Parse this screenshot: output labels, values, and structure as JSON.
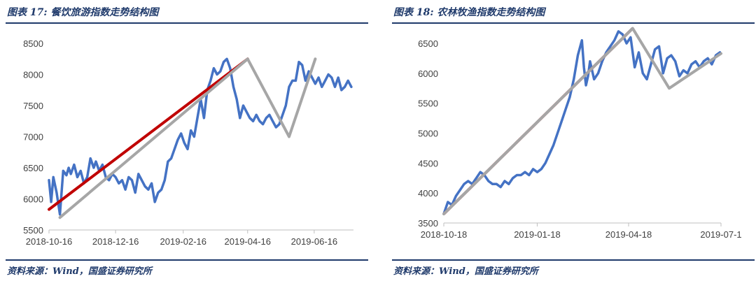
{
  "charts": [
    {
      "title": "图表 17:  餐饮旅游指数走势结构图",
      "source": "资料来源：Wind，国盛证券研究所",
      "chart_data": {
        "type": "line",
        "x_ticks": [
          "2018-10-16",
          "2018-12-16",
          "2019-02-16",
          "2019-04-16",
          "2019-06-16"
        ],
        "x_range": [
          "2018-10-16",
          "2019-07-22"
        ],
        "ylim": [
          5500,
          8500
        ],
        "y_ticks": [
          5500,
          6000,
          6500,
          7000,
          7500,
          8000,
          8500
        ],
        "grid": false,
        "legend": "none",
        "series": [
          {
            "color": "#4472c4",
            "x": [
              "2018-10-16",
              "2018-10-18",
              "2018-10-20",
              "2018-10-23",
              "2018-10-26",
              "2018-10-29",
              "2018-11-01",
              "2018-11-03",
              "2018-11-05",
              "2018-11-08",
              "2018-11-11",
              "2018-11-14",
              "2018-11-17",
              "2018-11-20",
              "2018-11-23",
              "2018-11-26",
              "2018-11-28",
              "2018-12-01",
              "2018-12-04",
              "2018-12-07",
              "2018-12-10",
              "2018-12-13",
              "2018-12-16",
              "2018-12-19",
              "2018-12-22",
              "2018-12-25",
              "2018-12-28",
              "2018-12-31",
              "2019-01-03",
              "2019-01-06",
              "2019-01-09",
              "2019-01-12",
              "2019-01-15",
              "2019-01-18",
              "2019-01-21",
              "2019-01-24",
              "2019-01-27",
              "2019-01-30",
              "2019-02-02",
              "2019-02-05",
              "2019-02-08",
              "2019-02-11",
              "2019-02-14",
              "2019-02-17",
              "2019-02-20",
              "2019-02-23",
              "2019-02-26",
              "2019-03-01",
              "2019-03-04",
              "2019-03-07",
              "2019-03-10",
              "2019-03-13",
              "2019-03-16",
              "2019-03-19",
              "2019-03-22",
              "2019-03-25",
              "2019-03-28",
              "2019-03-31",
              "2019-04-03",
              "2019-04-06",
              "2019-04-09",
              "2019-04-12",
              "2019-04-15",
              "2019-04-18",
              "2019-04-21",
              "2019-04-24",
              "2019-04-27",
              "2019-04-30",
              "2019-05-03",
              "2019-05-06",
              "2019-05-09",
              "2019-05-12",
              "2019-05-15",
              "2019-05-18",
              "2019-05-21",
              "2019-05-24",
              "2019-05-27",
              "2019-05-30",
              "2019-06-02",
              "2019-06-05",
              "2019-06-08",
              "2019-06-11",
              "2019-06-14",
              "2019-06-17",
              "2019-06-20",
              "2019-06-23",
              "2019-06-26",
              "2019-06-29",
              "2019-07-02",
              "2019-07-05",
              "2019-07-08",
              "2019-07-11",
              "2019-07-14",
              "2019-07-17",
              "2019-07-20"
            ],
            "values": [
              6300,
              5950,
              6350,
              6100,
              5750,
              6450,
              6380,
              6500,
              6400,
              6550,
              6350,
              6450,
              6250,
              6350,
              6650,
              6500,
              6600,
              6450,
              6550,
              6350,
              6300,
              6400,
              6350,
              6250,
              6300,
              6150,
              6350,
              6300,
              6100,
              6400,
              6300,
              6200,
              6150,
              6250,
              5950,
              6100,
              6150,
              6300,
              6600,
              6650,
              6800,
              6950,
              7050,
              6900,
              6800,
              7100,
              7000,
              7300,
              7600,
              7300,
              7750,
              7900,
              8100,
              8000,
              8050,
              8200,
              8250,
              8100,
              7800,
              7600,
              7300,
              7500,
              7400,
              7300,
              7250,
              7350,
              7250,
              7200,
              7300,
              7350,
              7250,
              7150,
              7200,
              7350,
              7500,
              7800,
              7900,
              7900,
              8200,
              8150,
              7900,
              8050,
              7950,
              7850,
              7950,
              7800,
              7900,
              8000,
              7950,
              7800,
              7950,
              7750,
              7800,
              7900,
              7800
            ]
          },
          {
            "color": "#c00000",
            "x": [
              "2018-10-16",
              "2019-04-16"
            ],
            "values": [
              5830,
              8250
            ]
          },
          {
            "color": "#a6a6a6",
            "x": [
              "2018-10-26",
              "2019-04-16",
              "2019-05-24",
              "2019-06-17"
            ],
            "values": [
              5700,
              8250,
              7000,
              8250
            ]
          }
        ]
      }
    },
    {
      "title": "图表 18:  农林牧渔指数走势结构图",
      "source": "资料来源：Wind，国盛证券研究所",
      "chart_data": {
        "type": "line",
        "x_ticks": [
          "2018-10-18",
          "2019-01-18",
          "2019-04-18",
          "2019-07-1"
        ],
        "x_range": [
          "2018-10-18",
          "2019-07-18"
        ],
        "ylim": [
          3500,
          6500
        ],
        "y_ticks": [
          3500,
          4000,
          4500,
          5000,
          5500,
          6000,
          6500
        ],
        "grid": false,
        "legend": "none",
        "series": [
          {
            "color": "#4472c4",
            "x": [
              "2018-10-18",
              "2018-10-22",
              "2018-10-26",
              "2018-10-30",
              "2018-11-03",
              "2018-11-07",
              "2018-11-11",
              "2018-11-15",
              "2018-11-19",
              "2018-11-23",
              "2018-11-27",
              "2018-12-01",
              "2018-12-05",
              "2018-12-09",
              "2018-12-13",
              "2018-12-17",
              "2018-12-21",
              "2018-12-25",
              "2018-12-29",
              "2019-01-02",
              "2019-01-06",
              "2019-01-10",
              "2019-01-14",
              "2019-01-18",
              "2019-01-22",
              "2019-01-26",
              "2019-01-30",
              "2019-02-03",
              "2019-02-07",
              "2019-02-11",
              "2019-02-15",
              "2019-02-19",
              "2019-02-23",
              "2019-02-27",
              "2019-03-03",
              "2019-03-05",
              "2019-03-07",
              "2019-03-09",
              "2019-03-11",
              "2019-03-15",
              "2019-03-19",
              "2019-03-23",
              "2019-03-27",
              "2019-03-31",
              "2019-04-04",
              "2019-04-08",
              "2019-04-12",
              "2019-04-16",
              "2019-04-20",
              "2019-04-24",
              "2019-04-28",
              "2019-05-02",
              "2019-05-06",
              "2019-05-10",
              "2019-05-14",
              "2019-05-18",
              "2019-05-22",
              "2019-05-26",
              "2019-05-30",
              "2019-06-03",
              "2019-06-07",
              "2019-06-11",
              "2019-06-15",
              "2019-06-19",
              "2019-06-23",
              "2019-06-27",
              "2019-07-01",
              "2019-07-05",
              "2019-07-09",
              "2019-07-13",
              "2019-07-17"
            ],
            "values": [
              3650,
              3850,
              3800,
              3950,
              4050,
              4150,
              4200,
              4150,
              4250,
              4350,
              4300,
              4200,
              4150,
              4150,
              4100,
              4200,
              4150,
              4250,
              4300,
              4300,
              4350,
              4300,
              4400,
              4350,
              4400,
              4500,
              4650,
              4800,
              5000,
              5200,
              5400,
              5600,
              5900,
              6300,
              6550,
              6100,
              5800,
              5950,
              6200,
              5900,
              6000,
              6200,
              6350,
              6450,
              6550,
              6700,
              6650,
              6500,
              6600,
              6100,
              6350,
              6000,
              5900,
              6150,
              6400,
              6450,
              6000,
              6250,
              6300,
              6200,
              5950,
              6050,
              6000,
              6150,
              6200,
              6100,
              6200,
              6250,
              6150,
              6300,
              6350
            ]
          },
          {
            "color": "#c00000",
            "dashed": true,
            "x": [
              "2018-10-18",
              "2019-04-22"
            ],
            "values": [
              3650,
              6750
            ]
          },
          {
            "color": "#a6a6a6",
            "x": [
              "2018-10-18",
              "2019-04-22",
              "2019-05-28",
              "2019-07-18"
            ],
            "values": [
              3650,
              6750,
              5750,
              6330
            ]
          }
        ]
      }
    }
  ]
}
